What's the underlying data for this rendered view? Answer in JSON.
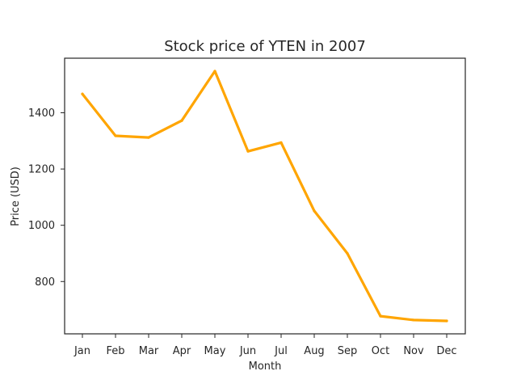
{
  "chart_data": {
    "type": "line",
    "title": "Stock price of YTEN in 2007",
    "xlabel": "Month",
    "ylabel": "Price (USD)",
    "categories": [
      "Jan",
      "Feb",
      "Mar",
      "Apr",
      "May",
      "Jun",
      "Jul",
      "Aug",
      "Sep",
      "Oct",
      "Nov",
      "Dec"
    ],
    "series": [
      {
        "values": [
          1467,
          1318,
          1312,
          1372,
          1548,
          1263,
          1294,
          1051,
          900,
          677,
          663,
          660
        ],
        "color": "#FFA500"
      }
    ],
    "ylim": [
      614,
      1594
    ],
    "yticks": [
      800,
      1000,
      1200,
      1400
    ],
    "grid": false,
    "legend": "none"
  }
}
